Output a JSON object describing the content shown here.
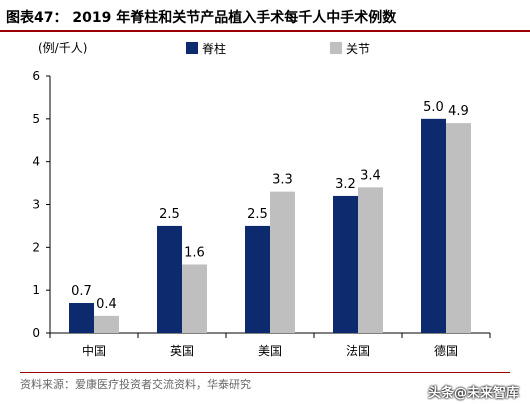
{
  "figure_label": "图表47：",
  "title": "2019 年脊柱和关节产品植入手术每千人中手术例数",
  "unit_label": "(例/千人)",
  "source": "资料来源：爱康医疗投资者交流资料，华泰研究",
  "watermark": "头条@未来智库",
  "colors": {
    "spine": "#0d2a6e",
    "joint": "#bfbfbf",
    "rule": "#9a0000"
  },
  "chart_data": {
    "type": "bar",
    "categories": [
      "中国",
      "英国",
      "美国",
      "法国",
      "德国"
    ],
    "series": [
      {
        "name": "脊柱",
        "values": [
          0.7,
          2.5,
          2.5,
          3.2,
          5.0
        ],
        "labels": [
          "0.7",
          "2.5",
          "2.5",
          "3.2",
          "5.0"
        ]
      },
      {
        "name": "关节",
        "values": [
          0.4,
          1.6,
          3.3,
          3.4,
          4.9
        ],
        "labels": [
          "0.4",
          "1.6",
          "3.3",
          "3.4",
          "4.9"
        ]
      }
    ],
    "ylim": [
      0,
      6
    ],
    "yticks": [
      0,
      1,
      2,
      3,
      4,
      5,
      6
    ],
    "xlabel": "",
    "ylabel": "(例/千人)",
    "legend": "top"
  }
}
